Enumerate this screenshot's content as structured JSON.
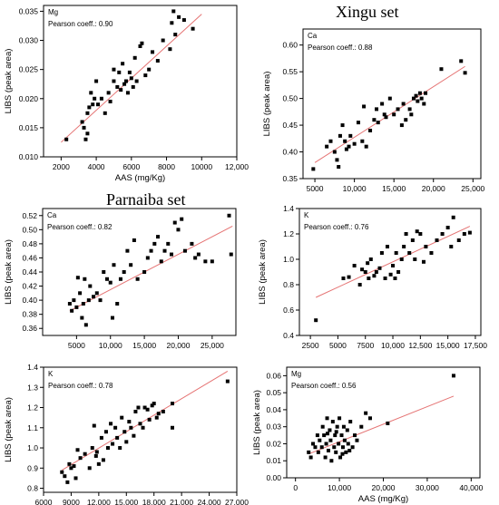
{
  "titles": {
    "xingu": "Xingu set",
    "parnaiba": "Parnaiba set"
  },
  "colors": {
    "fit_line": "#e57373",
    "marker": "#000000",
    "frame": "#000000"
  },
  "chart_data": [
    {
      "type": "scatter",
      "element": "Mg",
      "set": "",
      "pearson_label": "Pearson coeff.: 0.90",
      "xlabel": "AAS (mg/Kg)",
      "ylabel": "LIBS (peak area)",
      "xlim": [
        1000,
        12000
      ],
      "ylim": [
        0.01,
        0.036
      ],
      "xticks": [
        2000,
        4000,
        6000,
        8000,
        10000,
        12000
      ],
      "xtick_labels": [
        "2000",
        "4000",
        "6000",
        "8000",
        "10000",
        "12,000"
      ],
      "yticks": [
        0.01,
        0.015,
        0.02,
        0.025,
        0.03,
        0.035
      ],
      "ytick_labels": [
        "0.010",
        "0.015",
        "0.020",
        "0.025",
        "0.030",
        "0.035"
      ],
      "fit": [
        [
          2000,
          0.0125
        ],
        [
          10000,
          0.0345
        ]
      ],
      "points": [
        [
          2300,
          0.013
        ],
        [
          3200,
          0.016
        ],
        [
          3300,
          0.015
        ],
        [
          3400,
          0.013
        ],
        [
          3500,
          0.014
        ],
        [
          3500,
          0.0175
        ],
        [
          3600,
          0.0185
        ],
        [
          3700,
          0.021
        ],
        [
          3800,
          0.019
        ],
        [
          3900,
          0.02
        ],
        [
          4000,
          0.023
        ],
        [
          4100,
          0.019
        ],
        [
          4300,
          0.02
        ],
        [
          4500,
          0.0175
        ],
        [
          4700,
          0.021
        ],
        [
          4800,
          0.0195
        ],
        [
          5000,
          0.023
        ],
        [
          5000,
          0.025
        ],
        [
          5200,
          0.022
        ],
        [
          5300,
          0.0245
        ],
        [
          5400,
          0.0215
        ],
        [
          5500,
          0.026
        ],
        [
          5600,
          0.0225
        ],
        [
          5700,
          0.023
        ],
        [
          5800,
          0.021
        ],
        [
          5900,
          0.0245
        ],
        [
          6000,
          0.0235
        ],
        [
          6100,
          0.022
        ],
        [
          6200,
          0.027
        ],
        [
          6300,
          0.023
        ],
        [
          6500,
          0.029
        ],
        [
          6600,
          0.0295
        ],
        [
          6800,
          0.024
        ],
        [
          7000,
          0.025
        ],
        [
          7200,
          0.028
        ],
        [
          7500,
          0.0265
        ],
        [
          7800,
          0.03
        ],
        [
          8200,
          0.0285
        ],
        [
          8400,
          0.035
        ],
        [
          8500,
          0.031
        ],
        [
          8700,
          0.034
        ],
        [
          9000,
          0.0335
        ],
        [
          9500,
          0.032
        ],
        [
          8300,
          0.033
        ]
      ]
    },
    {
      "type": "scatter",
      "element": "Ca",
      "set": "Xingu set",
      "pearson_label": "Pearson coeff.: 0.88",
      "xlabel": "",
      "ylabel": "LIBS (peak area)",
      "xlim": [
        3500,
        26000
      ],
      "ylim": [
        0.35,
        0.63
      ],
      "xticks": [
        5000,
        10000,
        15000,
        20000,
        25000
      ],
      "xtick_labels": [
        "5000",
        "10,000",
        "15,000",
        "20,000",
        "25,000"
      ],
      "yticks": [
        0.35,
        0.4,
        0.45,
        0.5,
        0.55,
        0.6
      ],
      "ytick_labels": [
        "0.35",
        "0.40",
        "0.45",
        "0.50",
        "0.55",
        "0.60"
      ],
      "fit": [
        [
          5000,
          0.38
        ],
        [
          24000,
          0.56
        ]
      ],
      "points": [
        [
          4800,
          0.368
        ],
        [
          6500,
          0.41
        ],
        [
          7000,
          0.42
        ],
        [
          7500,
          0.4
        ],
        [
          7800,
          0.385
        ],
        [
          8000,
          0.372
        ],
        [
          8200,
          0.43
        ],
        [
          8500,
          0.45
        ],
        [
          8800,
          0.42
        ],
        [
          9000,
          0.405
        ],
        [
          9500,
          0.43
        ],
        [
          10000,
          0.415
        ],
        [
          10500,
          0.455
        ],
        [
          11000,
          0.42
        ],
        [
          11500,
          0.41
        ],
        [
          12000,
          0.44
        ],
        [
          12500,
          0.46
        ],
        [
          12800,
          0.48
        ],
        [
          13000,
          0.455
        ],
        [
          13500,
          0.49
        ],
        [
          13800,
          0.47
        ],
        [
          14000,
          0.465
        ],
        [
          14500,
          0.5
        ],
        [
          15000,
          0.47
        ],
        [
          15500,
          0.48
        ],
        [
          16000,
          0.45
        ],
        [
          16200,
          0.49
        ],
        [
          16500,
          0.46
        ],
        [
          17000,
          0.48
        ],
        [
          17200,
          0.47
        ],
        [
          17500,
          0.5
        ],
        [
          17800,
          0.505
        ],
        [
          18000,
          0.495
        ],
        [
          18300,
          0.51
        ],
        [
          18500,
          0.5
        ],
        [
          18800,
          0.49
        ],
        [
          19000,
          0.51
        ],
        [
          21000,
          0.555
        ],
        [
          23500,
          0.57
        ],
        [
          24000,
          0.548
        ],
        [
          9300,
          0.41
        ],
        [
          11200,
          0.485
        ]
      ]
    },
    {
      "type": "scatter",
      "element": "Ca",
      "set": "Parnaiba set",
      "pearson_label": "Pearson coeff.: 0.82",
      "xlabel": "",
      "ylabel": "LIBS (peak area)",
      "xlim": [
        0,
        28500
      ],
      "ylim": [
        0.35,
        0.53
      ],
      "xticks": [
        5000,
        10000,
        15000,
        20000,
        25000
      ],
      "xtick_labels": [
        "5000",
        "10,000",
        "15,000",
        "20,000",
        "25,000"
      ],
      "yticks": [
        0.36,
        0.38,
        0.4,
        0.42,
        0.44,
        0.46,
        0.48,
        0.5,
        0.52
      ],
      "ytick_labels": [
        "0.36",
        "0.38",
        "0.40",
        "0.42",
        "0.44",
        "0.46",
        "0.48",
        "0.50",
        "0.52"
      ],
      "fit": [
        [
          4000,
          0.385
        ],
        [
          28000,
          0.505
        ]
      ],
      "points": [
        [
          4000,
          0.395
        ],
        [
          4300,
          0.385
        ],
        [
          4600,
          0.4
        ],
        [
          5000,
          0.39
        ],
        [
          5200,
          0.432
        ],
        [
          5500,
          0.41
        ],
        [
          5800,
          0.375
        ],
        [
          6000,
          0.395
        ],
        [
          6200,
          0.43
        ],
        [
          6800,
          0.4
        ],
        [
          7000,
          0.42
        ],
        [
          7500,
          0.405
        ],
        [
          8000,
          0.41
        ],
        [
          8500,
          0.4
        ],
        [
          9000,
          0.44
        ],
        [
          9500,
          0.43
        ],
        [
          10000,
          0.425
        ],
        [
          10500,
          0.45
        ],
        [
          11000,
          0.395
        ],
        [
          11500,
          0.43
        ],
        [
          12000,
          0.44
        ],
        [
          12500,
          0.47
        ],
        [
          13000,
          0.45
        ],
        [
          13500,
          0.485
        ],
        [
          14000,
          0.43
        ],
        [
          15000,
          0.44
        ],
        [
          15500,
          0.46
        ],
        [
          16000,
          0.47
        ],
        [
          16500,
          0.48
        ],
        [
          17000,
          0.49
        ],
        [
          17500,
          0.455
        ],
        [
          18000,
          0.47
        ],
        [
          18500,
          0.48
        ],
        [
          19000,
          0.465
        ],
        [
          19500,
          0.51
        ],
        [
          20000,
          0.5
        ],
        [
          20500,
          0.515
        ],
        [
          21000,
          0.47
        ],
        [
          22000,
          0.48
        ],
        [
          22500,
          0.46
        ],
        [
          23000,
          0.465
        ],
        [
          24000,
          0.455
        ],
        [
          25000,
          0.455
        ],
        [
          27500,
          0.52
        ],
        [
          27800,
          0.465
        ],
        [
          10300,
          0.375
        ],
        [
          6400,
          0.365
        ]
      ]
    },
    {
      "type": "scatter",
      "element": "K",
      "set": "Xingu set",
      "pearson_label": "Pearson coeff.: 0.76",
      "xlabel": "",
      "ylabel": "LIBS (peak area)",
      "xlim": [
        1500,
        18000
      ],
      "ylim": [
        0.4,
        1.4
      ],
      "xticks": [
        2500,
        5000,
        7500,
        10000,
        12500,
        15000,
        17500
      ],
      "xtick_labels": [
        "2500",
        "5000",
        "7500",
        "10,000",
        "12,500",
        "15,000",
        "17,500"
      ],
      "yticks": [
        0.4,
        0.6,
        0.8,
        1.0,
        1.2,
        1.4
      ],
      "ytick_labels": [
        "0.4",
        "0.6",
        "0.8",
        "1.0",
        "1.2",
        "1.4"
      ],
      "fit": [
        [
          3000,
          0.7
        ],
        [
          17000,
          1.26
        ]
      ],
      "points": [
        [
          3000,
          0.52
        ],
        [
          5500,
          0.85
        ],
        [
          6000,
          0.86
        ],
        [
          6500,
          0.95
        ],
        [
          7000,
          0.8
        ],
        [
          7200,
          0.92
        ],
        [
          7500,
          0.9
        ],
        [
          7800,
          0.85
        ],
        [
          8000,
          1.0
        ],
        [
          8300,
          0.87
        ],
        [
          8500,
          0.9
        ],
        [
          8800,
          0.93
        ],
        [
          9000,
          1.05
        ],
        [
          9300,
          0.85
        ],
        [
          9500,
          1.1
        ],
        [
          9800,
          0.88
        ],
        [
          10000,
          0.95
        ],
        [
          10300,
          1.05
        ],
        [
          10500,
          0.9
        ],
        [
          10800,
          1.0
        ],
        [
          11000,
          1.1
        ],
        [
          11200,
          1.2
        ],
        [
          11500,
          1.05
        ],
        [
          11800,
          1.15
        ],
        [
          12000,
          1.0
        ],
        [
          12200,
          1.22
        ],
        [
          12500,
          1.2
        ],
        [
          12800,
          0.98
        ],
        [
          13000,
          1.1
        ],
        [
          13500,
          1.05
        ],
        [
          14000,
          1.15
        ],
        [
          14500,
          1.2
        ],
        [
          15000,
          1.25
        ],
        [
          15300,
          1.1
        ],
        [
          15500,
          1.33
        ],
        [
          16000,
          1.15
        ],
        [
          16500,
          1.2
        ],
        [
          17000,
          1.21
        ],
        [
          10200,
          0.85
        ],
        [
          7700,
          0.97
        ]
      ]
    },
    {
      "type": "scatter",
      "element": "K",
      "set": "Parnaiba set",
      "pearson_label": "Pearson coeff.: 0.78",
      "xlabel": "",
      "ylabel": "LIBS (peak area)",
      "xlim": [
        6000,
        27000
      ],
      "ylim": [
        0.78,
        1.4
      ],
      "xticks": [
        6000,
        9000,
        12000,
        15000,
        18000,
        21000,
        24000,
        27000
      ],
      "xtick_labels": [
        "6000",
        "9000",
        "12,000",
        "15,000",
        "18,000",
        "21,000",
        "24,000",
        "27,000"
      ],
      "yticks": [
        0.8,
        0.9,
        1.0,
        1.1,
        1.2,
        1.3,
        1.4
      ],
      "ytick_labels": [
        "0.8",
        "0.9",
        "1.0",
        "1.1",
        "1.2",
        "1.3",
        "1.4"
      ],
      "fit": [
        [
          8000,
          0.89
        ],
        [
          26000,
          1.38
        ]
      ],
      "points": [
        [
          8000,
          0.88
        ],
        [
          8300,
          0.86
        ],
        [
          8600,
          0.83
        ],
        [
          8800,
          0.92
        ],
        [
          9000,
          0.9
        ],
        [
          9300,
          0.91
        ],
        [
          9500,
          0.85
        ],
        [
          10000,
          0.95
        ],
        [
          10500,
          0.97
        ],
        [
          11000,
          0.9
        ],
        [
          11300,
          1.0
        ],
        [
          11500,
          1.11
        ],
        [
          11800,
          0.98
        ],
        [
          12000,
          0.92
        ],
        [
          12300,
          1.05
        ],
        [
          12500,
          0.94
        ],
        [
          12800,
          1.08
        ],
        [
          13000,
          1.0
        ],
        [
          13300,
          1.12
        ],
        [
          13500,
          1.02
        ],
        [
          13800,
          1.1
        ],
        [
          14000,
          1.05
        ],
        [
          14300,
          1.0
        ],
        [
          14500,
          1.15
        ],
        [
          14800,
          1.08
        ],
        [
          15000,
          1.03
        ],
        [
          15300,
          1.13
        ],
        [
          15500,
          1.1
        ],
        [
          15800,
          1.06
        ],
        [
          16000,
          1.18
        ],
        [
          16300,
          1.2
        ],
        [
          16500,
          1.12
        ],
        [
          16800,
          1.1
        ],
        [
          17000,
          1.2
        ],
        [
          17300,
          1.19
        ],
        [
          17500,
          1.14
        ],
        [
          17800,
          1.21
        ],
        [
          18000,
          1.22
        ],
        [
          18300,
          1.15
        ],
        [
          18500,
          1.17
        ],
        [
          19000,
          1.18
        ],
        [
          20000,
          1.22
        ],
        [
          20000,
          1.1
        ],
        [
          26000,
          1.33
        ],
        [
          11700,
          0.96
        ],
        [
          9700,
          0.99
        ]
      ]
    },
    {
      "type": "scatter",
      "element": "Mg",
      "set": "Parnaiba set",
      "pearson_label": "Pearson coeff.: 0.56",
      "xlabel": "AAS (mg/Kg)",
      "ylabel": "LIBS (peak area)",
      "xlim": [
        -2000,
        42000
      ],
      "ylim": [
        0.0,
        0.065
      ],
      "xticks": [
        0,
        10000,
        20000,
        30000,
        40000
      ],
      "xtick_labels": [
        "0",
        "10,000",
        "20,000",
        "30,000",
        "40,000"
      ],
      "yticks": [
        0.0,
        0.01,
        0.02,
        0.03,
        0.04,
        0.05,
        0.06
      ],
      "ytick_labels": [
        "0.00",
        "0.01",
        "0.02",
        "0.03",
        "0.04",
        "0.05",
        "0.06"
      ],
      "fit": [
        [
          3000,
          0.014
        ],
        [
          36000,
          0.048
        ]
      ],
      "points": [
        [
          3000,
          0.015
        ],
        [
          3500,
          0.012
        ],
        [
          4000,
          0.02
        ],
        [
          4500,
          0.018
        ],
        [
          5000,
          0.025
        ],
        [
          5200,
          0.015
        ],
        [
          5500,
          0.022
        ],
        [
          6000,
          0.018
        ],
        [
          6200,
          0.03
        ],
        [
          6500,
          0.025
        ],
        [
          6800,
          0.012
        ],
        [
          7000,
          0.02
        ],
        [
          7200,
          0.035
        ],
        [
          7500,
          0.016
        ],
        [
          7800,
          0.028
        ],
        [
          8000,
          0.022
        ],
        [
          8200,
          0.01
        ],
        [
          8500,
          0.033
        ],
        [
          8800,
          0.018
        ],
        [
          9000,
          0.025
        ],
        [
          9200,
          0.015
        ],
        [
          9500,
          0.03
        ],
        [
          9800,
          0.02
        ],
        [
          10000,
          0.035
        ],
        [
          10200,
          0.012
        ],
        [
          10500,
          0.025
        ],
        [
          10800,
          0.018
        ],
        [
          11000,
          0.03
        ],
        [
          11200,
          0.022
        ],
        [
          11500,
          0.015
        ],
        [
          11800,
          0.028
        ],
        [
          12000,
          0.02
        ],
        [
          12500,
          0.033
        ],
        [
          13000,
          0.018
        ],
        [
          13500,
          0.025
        ],
        [
          14000,
          0.022
        ],
        [
          15000,
          0.03
        ],
        [
          16000,
          0.038
        ],
        [
          17000,
          0.035
        ],
        [
          21000,
          0.032
        ],
        [
          36000,
          0.06
        ],
        [
          7300,
          0.026
        ],
        [
          9300,
          0.027
        ],
        [
          10700,
          0.014
        ],
        [
          12300,
          0.016
        ]
      ]
    }
  ]
}
